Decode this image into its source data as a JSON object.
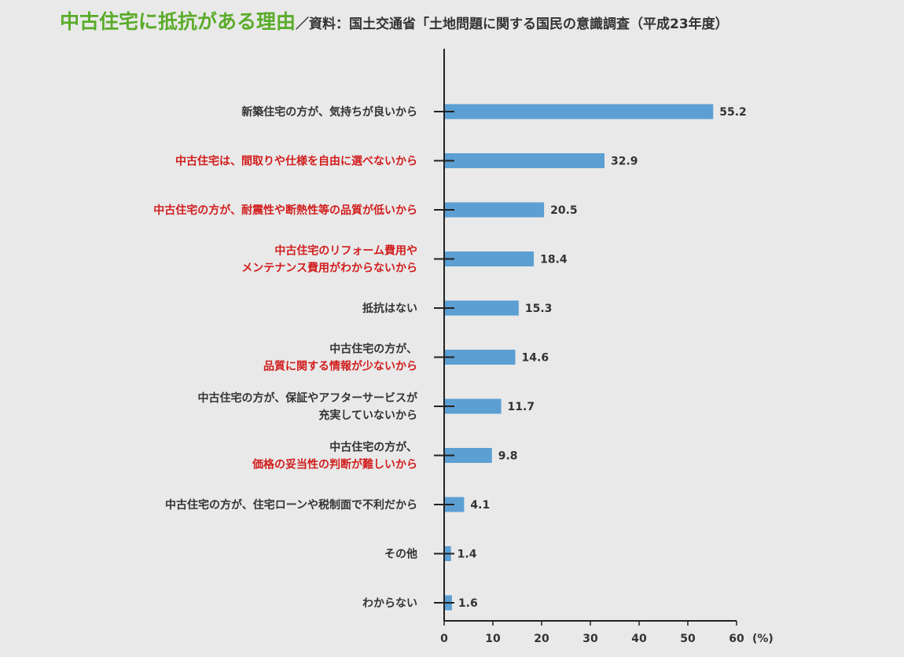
{
  "page": {
    "title": "中古住宅に抵抗がある理由",
    "source": "／資料：国土交通省「土地問題に関する国民の意識調査（平成23年度）"
  },
  "chart_data": {
    "type": "bar",
    "orientation": "horizontal",
    "title": "中古住宅に抵抗がある理由",
    "xlim": [
      0,
      60
    ],
    "xticks": [
      "0",
      "10",
      "20",
      "30",
      "40",
      "50",
      "60"
    ],
    "x_unit": "(%)",
    "grid": false,
    "categories": [
      {
        "segments": [
          {
            "text": "新築住宅の方が、気持ちが良いから",
            "highlight": false
          }
        ],
        "value": 55.2,
        "value_label": "55.2"
      },
      {
        "segments": [
          {
            "text": "中古住宅は、間取りや仕様を自由に選べないから",
            "highlight": true
          }
        ],
        "value": 32.9,
        "value_label": "32.9"
      },
      {
        "segments": [
          {
            "text": "中古住宅の方が、耐震性や断熱性等の品質が低いから",
            "highlight": true
          }
        ],
        "value": 20.5,
        "value_label": "20.5"
      },
      {
        "segments": [
          {
            "text": "中古住宅のリフォーム費用や",
            "highlight": true
          },
          {
            "text": "メンテナンス費用がわからないから",
            "highlight": true
          }
        ],
        "value": 18.4,
        "value_label": "18.4"
      },
      {
        "segments": [
          {
            "text": "抵抗はない",
            "highlight": false
          }
        ],
        "value": 15.3,
        "value_label": "15.3"
      },
      {
        "segments": [
          {
            "text": "中古住宅の方が、",
            "highlight": false
          },
          {
            "text": "品質に関する情報が少ないから",
            "highlight": true
          }
        ],
        "value": 14.6,
        "value_label": "14.6"
      },
      {
        "segments": [
          {
            "text": "中古住宅の方が、保証やアフターサービスが",
            "highlight": false
          },
          {
            "text": "充実していないから",
            "highlight": false
          }
        ],
        "value": 11.7,
        "value_label": "11.7"
      },
      {
        "segments": [
          {
            "text": "中古住宅の方が、",
            "highlight": false
          },
          {
            "text": "価格の妥当性の判断が難しいから",
            "highlight": true
          }
        ],
        "value": 9.8,
        "value_label": "9.8"
      },
      {
        "segments": [
          {
            "text": "中古住宅の方が、住宅ローンや税制面で不利だから",
            "highlight": false
          }
        ],
        "value": 4.1,
        "value_label": "4.1"
      },
      {
        "segments": [
          {
            "text": "その他",
            "highlight": false
          }
        ],
        "value": 1.4,
        "value_label": "1.4"
      },
      {
        "segments": [
          {
            "text": "わからない",
            "highlight": false
          }
        ],
        "value": 1.6,
        "value_label": "1.6"
      }
    ],
    "colors": {
      "bar": "#5b9fd3",
      "axis": "#222222",
      "label": "#333333",
      "highlight": "#d21e1e",
      "title": "#5aac2a"
    }
  }
}
